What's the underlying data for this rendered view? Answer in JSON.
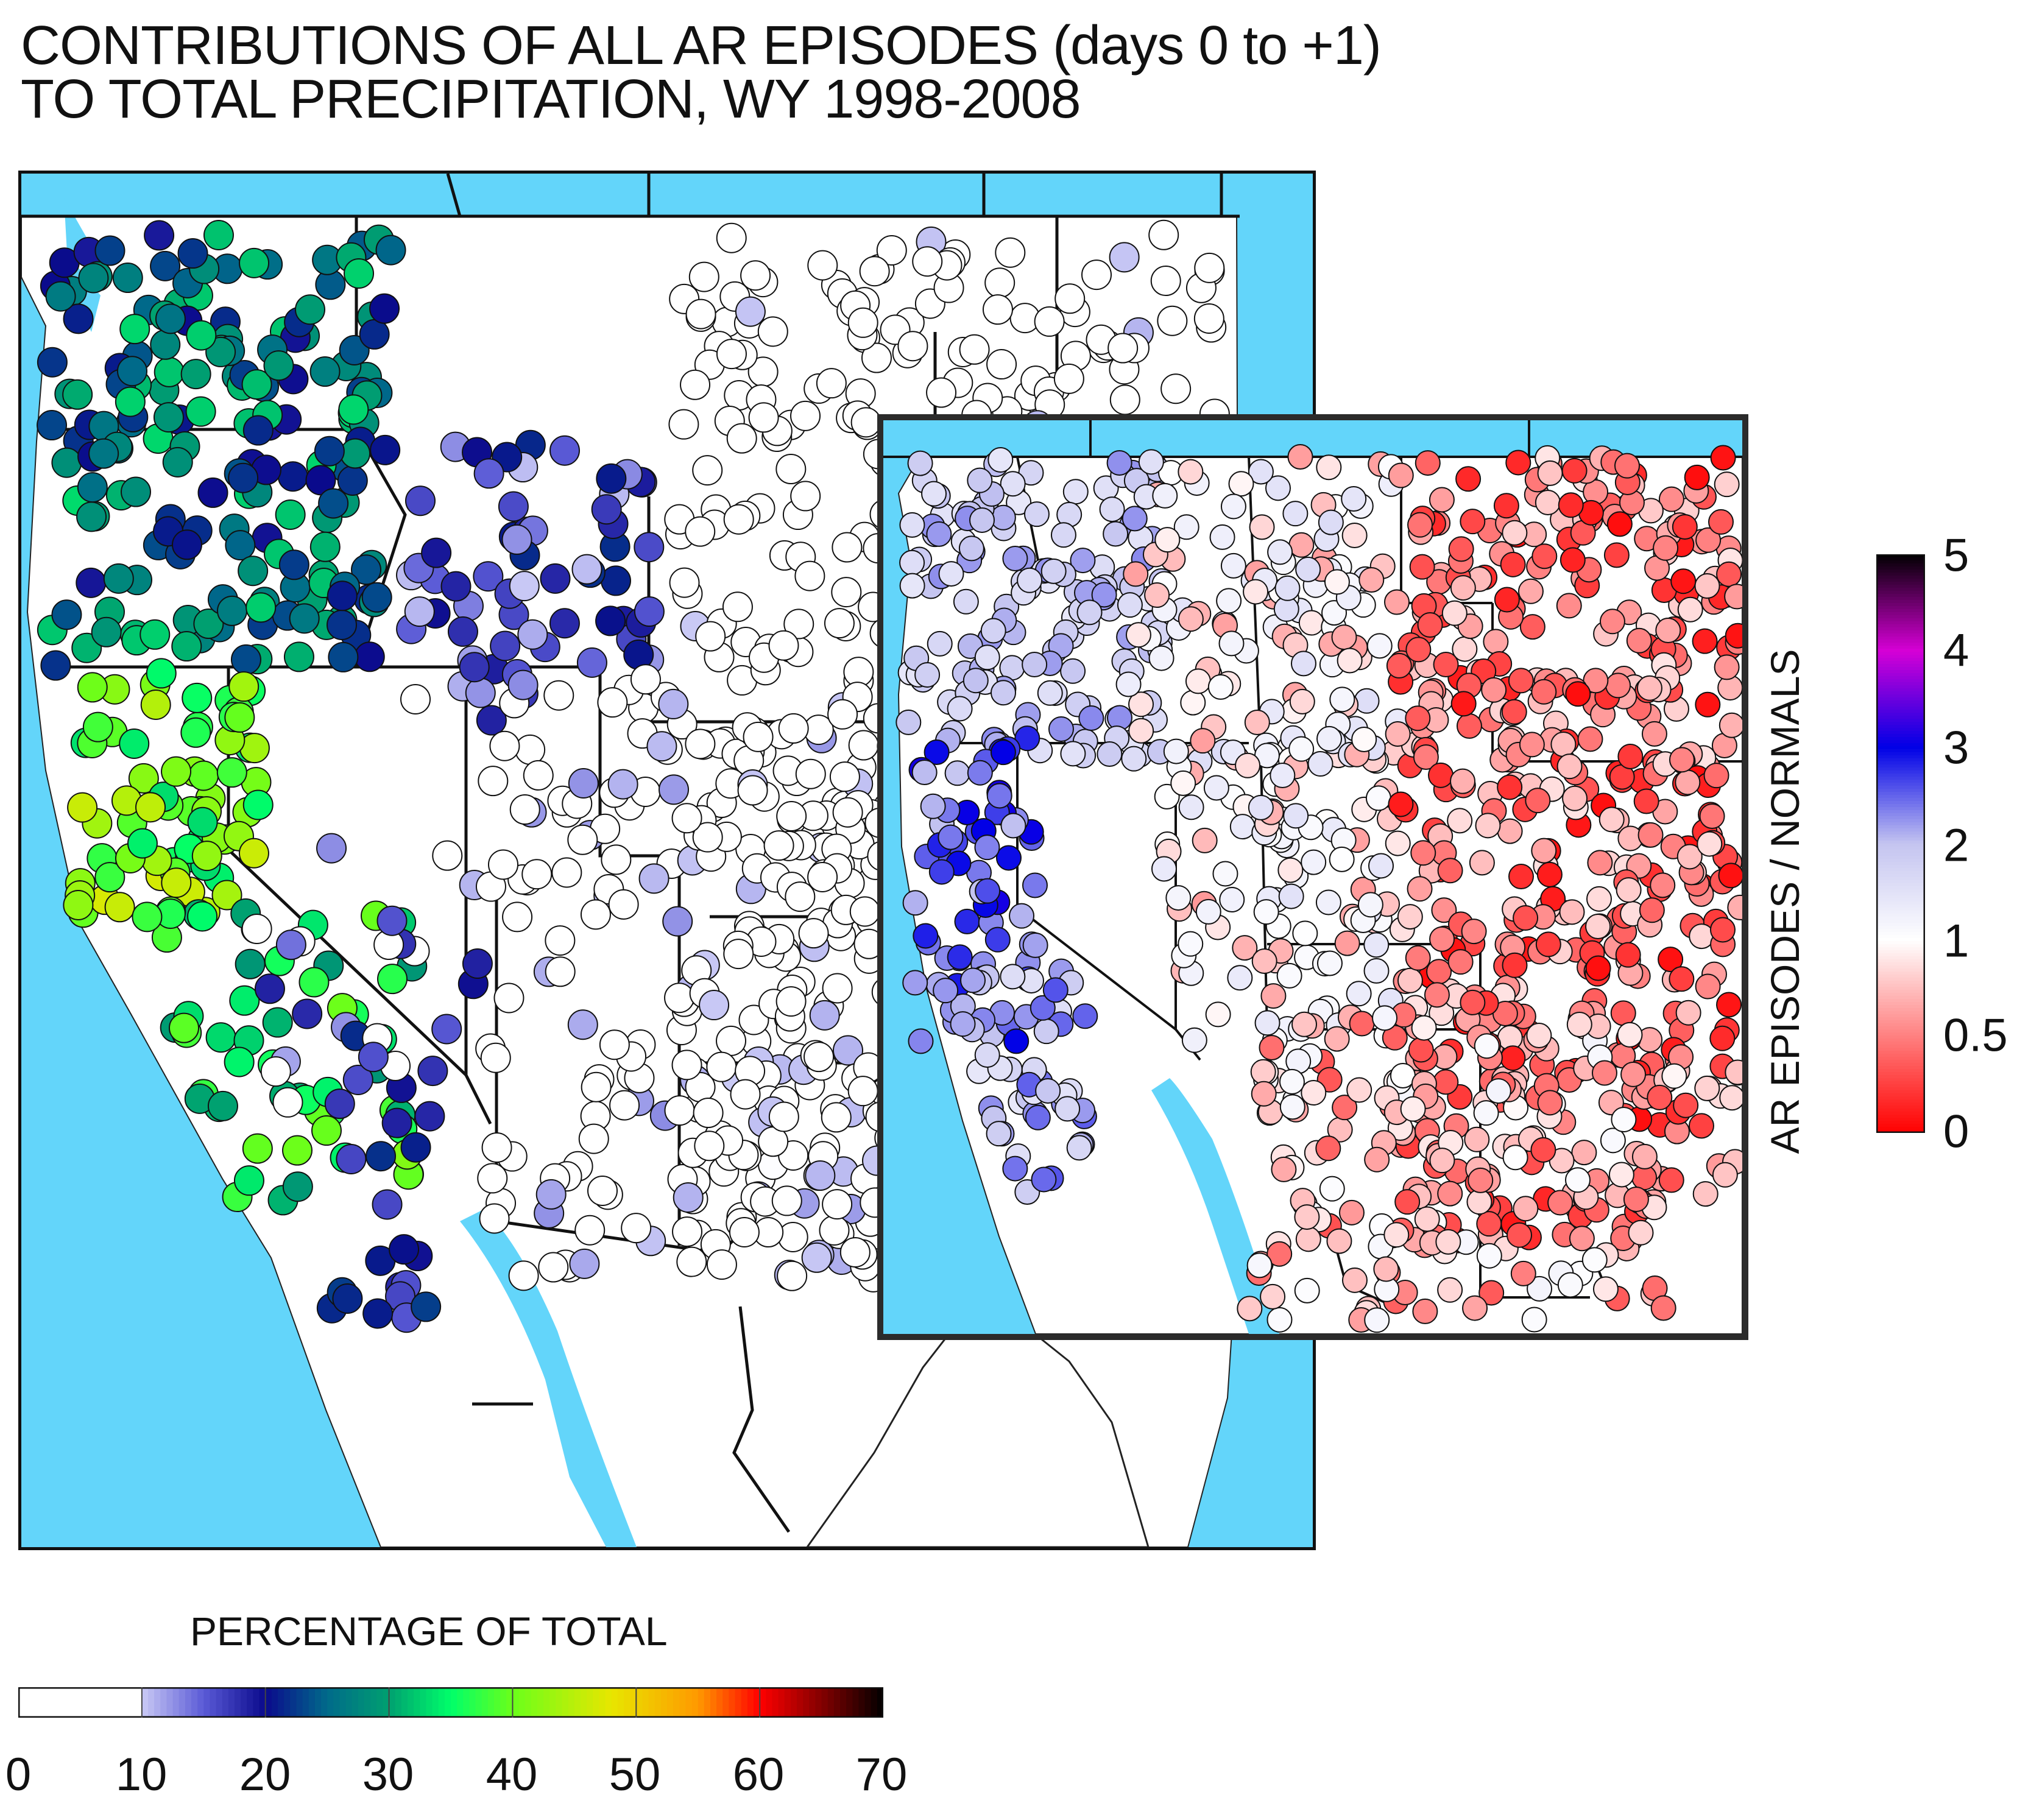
{
  "title": {
    "line1": "CONTRIBUTIONS OF ALL AR EPISODES (days 0 to +1)",
    "line2": "TO TOTAL PRECIPITATION, WY 1998-2008"
  },
  "colors": {
    "ocean": "#63d5fa",
    "land": "#ffffff",
    "border": "#111111",
    "pct_scale": [
      "#ffffff",
      "#ffffff",
      "#c9c9f5",
      "#5a5ad6",
      "#0a0a8c",
      "#006a8a",
      "#00a070",
      "#00ff6a",
      "#6aff1a",
      "#e8e600",
      "#ff9900",
      "#ff0000",
      "#6a0000",
      "#000000"
    ],
    "ratio_scale": [
      "#ff0000",
      "#ffffff",
      "#c4c4f0",
      "#0000e6",
      "#d600d6",
      "#000000"
    ]
  },
  "maps": {
    "main": {
      "name": "percentage of total precipitation",
      "value_unit": "percent"
    },
    "inset": {
      "name": "AR episodes / normals ratio",
      "value_unit": "ratio"
    }
  },
  "legend_percentage": {
    "title": "PERCENTAGE OF TOTAL",
    "range": [
      0,
      70
    ],
    "ticks": [
      "0",
      "10",
      "20",
      "30",
      "40",
      "50",
      "60",
      "70"
    ]
  },
  "legend_ratio": {
    "title": "AR EPISODES / NORMALS",
    "ticks": [
      "0",
      "0.5",
      "1",
      "2",
      "3",
      "4",
      "5"
    ]
  },
  "regions": {
    "pacific_northwest": {
      "approx_percentage": [
        20,
        35
      ]
    },
    "california": {
      "approx_percentage": [
        30,
        48
      ]
    },
    "interior_west": {
      "approx_percentage": [
        0,
        18
      ]
    },
    "inset_california_ratio": [
      1.5,
      3.2
    ],
    "inset_plains_ratio": [
      0,
      0.9
    ]
  }
}
